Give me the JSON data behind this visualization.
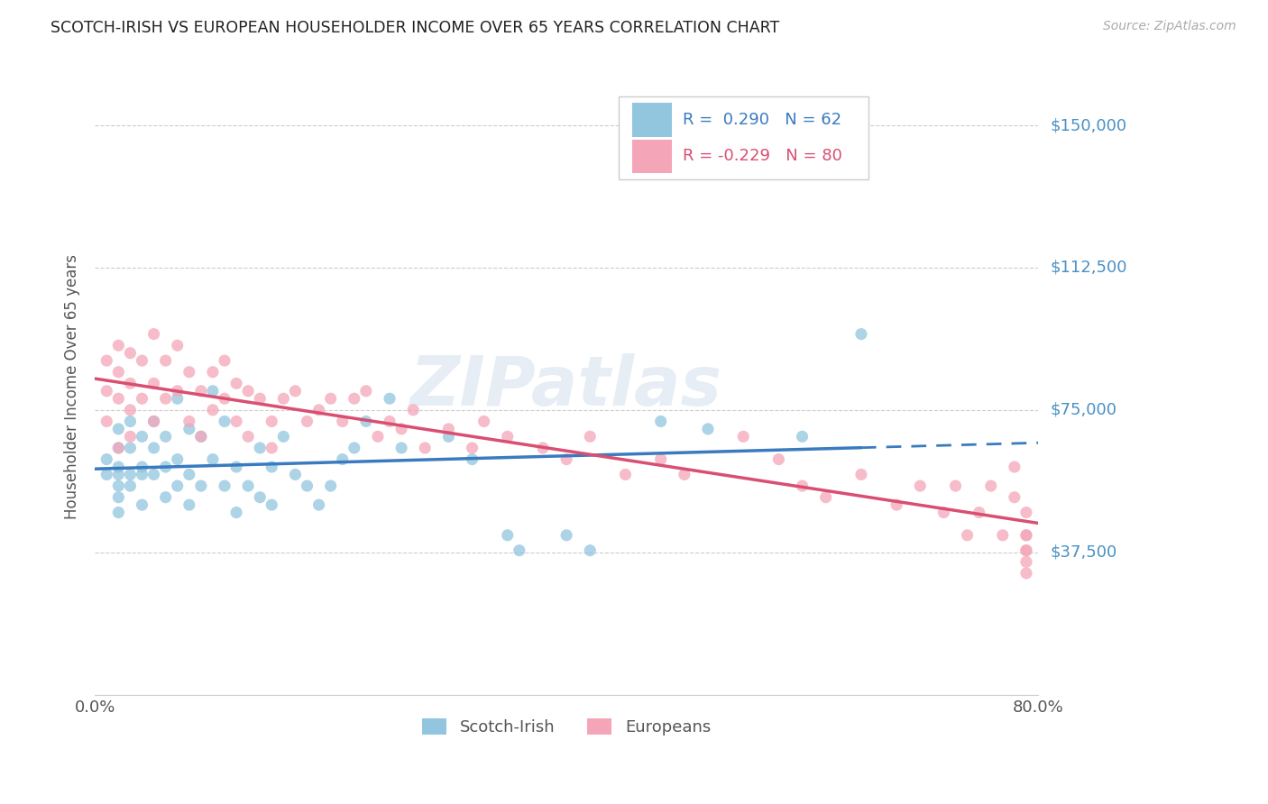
{
  "title": "SCOTCH-IRISH VS EUROPEAN HOUSEHOLDER INCOME OVER 65 YEARS CORRELATION CHART",
  "source": "Source: ZipAtlas.com",
  "ylabel": "Householder Income Over 65 years",
  "xlim": [
    0.0,
    0.8
  ],
  "ylim": [
    0,
    162500
  ],
  "yticks": [
    0,
    37500,
    75000,
    112500,
    150000
  ],
  "ytick_labels": [
    "",
    "$37,500",
    "$75,000",
    "$112,500",
    "$150,000"
  ],
  "xticks": [
    0.0,
    0.1,
    0.2,
    0.3,
    0.4,
    0.5,
    0.6,
    0.7,
    0.8
  ],
  "blue_color": "#92c5de",
  "pink_color": "#f4a6b8",
  "trend_blue": "#3a7bbf",
  "trend_pink": "#d94f72",
  "axis_label_color": "#4a90c4",
  "background_color": "#ffffff",
  "grid_color": "#c8c8c8",
  "title_color": "#222222",
  "watermark": "ZIPatlas",
  "blue_x": [
    0.01,
    0.01,
    0.02,
    0.02,
    0.02,
    0.02,
    0.02,
    0.02,
    0.02,
    0.03,
    0.03,
    0.03,
    0.03,
    0.04,
    0.04,
    0.04,
    0.04,
    0.05,
    0.05,
    0.05,
    0.06,
    0.06,
    0.06,
    0.07,
    0.07,
    0.07,
    0.08,
    0.08,
    0.08,
    0.09,
    0.09,
    0.1,
    0.1,
    0.11,
    0.11,
    0.12,
    0.12,
    0.13,
    0.14,
    0.14,
    0.15,
    0.15,
    0.16,
    0.17,
    0.18,
    0.19,
    0.2,
    0.21,
    0.22,
    0.23,
    0.25,
    0.26,
    0.3,
    0.32,
    0.35,
    0.36,
    0.4,
    0.42,
    0.48,
    0.52,
    0.6,
    0.65
  ],
  "blue_y": [
    58000,
    62000,
    55000,
    60000,
    65000,
    70000,
    58000,
    52000,
    48000,
    65000,
    58000,
    72000,
    55000,
    68000,
    60000,
    50000,
    58000,
    72000,
    65000,
    58000,
    68000,
    60000,
    52000,
    78000,
    62000,
    55000,
    70000,
    58000,
    50000,
    68000,
    55000,
    80000,
    62000,
    72000,
    55000,
    60000,
    48000,
    55000,
    65000,
    52000,
    60000,
    50000,
    68000,
    58000,
    55000,
    50000,
    55000,
    62000,
    65000,
    72000,
    78000,
    65000,
    68000,
    62000,
    42000,
    38000,
    42000,
    38000,
    72000,
    70000,
    68000,
    95000
  ],
  "pink_x": [
    0.01,
    0.01,
    0.01,
    0.02,
    0.02,
    0.02,
    0.02,
    0.03,
    0.03,
    0.03,
    0.03,
    0.04,
    0.04,
    0.05,
    0.05,
    0.05,
    0.06,
    0.06,
    0.07,
    0.07,
    0.08,
    0.08,
    0.09,
    0.09,
    0.1,
    0.1,
    0.11,
    0.11,
    0.12,
    0.12,
    0.13,
    0.13,
    0.14,
    0.15,
    0.15,
    0.16,
    0.17,
    0.18,
    0.19,
    0.2,
    0.21,
    0.22,
    0.23,
    0.24,
    0.25,
    0.26,
    0.27,
    0.28,
    0.3,
    0.32,
    0.33,
    0.35,
    0.38,
    0.4,
    0.42,
    0.45,
    0.48,
    0.5,
    0.55,
    0.58,
    0.6,
    0.62,
    0.65,
    0.68,
    0.7,
    0.72,
    0.73,
    0.74,
    0.75,
    0.76,
    0.77,
    0.78,
    0.78,
    0.79,
    0.79,
    0.79,
    0.79,
    0.79,
    0.79,
    0.79
  ],
  "pink_y": [
    72000,
    80000,
    88000,
    78000,
    85000,
    92000,
    65000,
    82000,
    90000,
    75000,
    68000,
    88000,
    78000,
    95000,
    82000,
    72000,
    88000,
    78000,
    92000,
    80000,
    85000,
    72000,
    80000,
    68000,
    85000,
    75000,
    88000,
    78000,
    82000,
    72000,
    80000,
    68000,
    78000,
    72000,
    65000,
    78000,
    80000,
    72000,
    75000,
    78000,
    72000,
    78000,
    80000,
    68000,
    72000,
    70000,
    75000,
    65000,
    70000,
    65000,
    72000,
    68000,
    65000,
    62000,
    68000,
    58000,
    62000,
    58000,
    68000,
    62000,
    55000,
    52000,
    58000,
    50000,
    55000,
    48000,
    55000,
    42000,
    48000,
    55000,
    42000,
    52000,
    60000,
    38000,
    42000,
    35000,
    42000,
    38000,
    32000,
    48000
  ]
}
